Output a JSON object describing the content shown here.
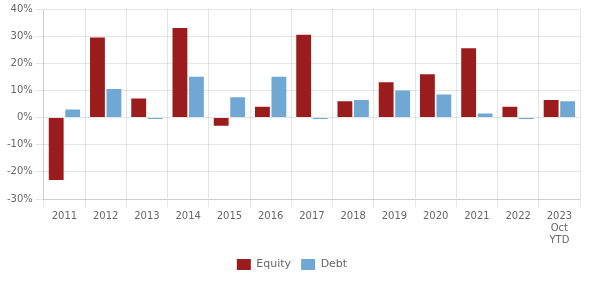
{
  "chart_data": {
    "type": "bar",
    "categories": [
      "2011",
      "2012",
      "2013",
      "2014",
      "2015",
      "2016",
      "2017",
      "2018",
      "2019",
      "2020",
      "2021",
      "2022",
      "2023\nOct\nYTD"
    ],
    "series": [
      {
        "name": "Equity",
        "color": "#9b1c1c",
        "values": [
          -23,
          29.5,
          7,
          33,
          -3,
          4,
          30.5,
          6,
          13,
          16,
          25.5,
          4,
          6.5
        ]
      },
      {
        "name": "Debt",
        "color": "#6fa8d4",
        "values": [
          3,
          10.5,
          -0.5,
          15,
          7.5,
          15,
          -0.5,
          6.5,
          10,
          8.5,
          1.5,
          -0.5,
          6
        ]
      }
    ],
    "ylim": [
      -30,
      40
    ],
    "yticks": [
      {
        "value": -30,
        "label": "-30%"
      },
      {
        "value": -20,
        "label": "-20%"
      },
      {
        "value": -10,
        "label": "-10%"
      },
      {
        "value": 0,
        "label": "0%"
      },
      {
        "value": 10,
        "label": "10%"
      },
      {
        "value": 20,
        "label": "20%"
      },
      {
        "value": 30,
        "label": "30%"
      },
      {
        "value": 40,
        "label": "40%"
      }
    ],
    "grid": true,
    "legend": "bottom"
  }
}
